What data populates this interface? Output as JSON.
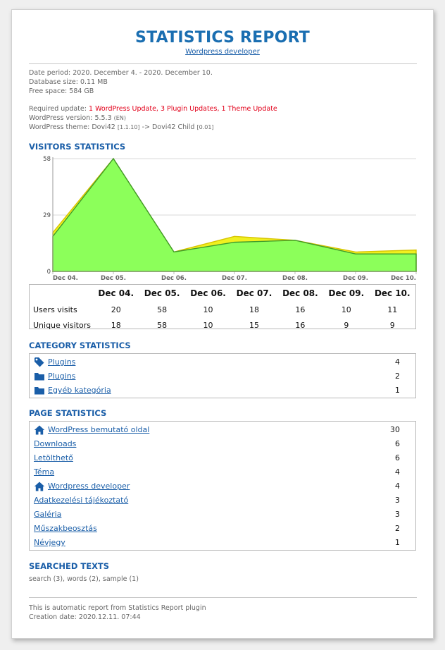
{
  "header": {
    "title": "STATISTICS REPORT",
    "subtitle_link": "Wordpress developer"
  },
  "meta": {
    "date_period": "Date period: 2020. December 4. - 2020. December 10.",
    "db_size": "Database size: 0.11 MB",
    "free_space": "Free space: 584 GB",
    "required_update_label": "Required update: ",
    "required_update_value": "1 WordPress Update, 3 Plugin Updates, 1 Theme Update",
    "wp_version_label": "WordPress version: 5.5.3",
    "wp_version_lang": "(EN)",
    "wp_theme_label": "WordPress theme: Dovi42",
    "wp_theme_ver1": "[1.1.10]",
    "wp_theme_arrow": "-> Dovi42 Child",
    "wp_theme_ver2": "[0.01]"
  },
  "sections": {
    "visitors": "VISITORS STATISTICS",
    "category": "CATEGORY STATISTICS",
    "page": "PAGE STATISTICS",
    "searched": "SEARCHED TEXTS"
  },
  "chart_data": {
    "type": "area",
    "x": [
      "Dec 04.",
      "Dec 05.",
      "Dec 06.",
      "Dec 07.",
      "Dec 08.",
      "Dec 09.",
      "Dec 10."
    ],
    "series": [
      {
        "name": "Users visits",
        "values": [
          20,
          58,
          10,
          18,
          16,
          10,
          11
        ],
        "color": "#f0f020"
      },
      {
        "name": "Unique visitors",
        "values": [
          18,
          58,
          10,
          15,
          16,
          9,
          9
        ],
        "color": "#8cff5a"
      }
    ],
    "yticks": [
      0,
      29,
      58
    ],
    "ylim": [
      0,
      58
    ],
    "grid": true
  },
  "visits_table": {
    "headers": [
      "Dec 04.",
      "Dec 05.",
      "Dec 06.",
      "Dec 07.",
      "Dec 08.",
      "Dec 09.",
      "Dec 10."
    ],
    "rows": [
      {
        "label": "Users visits",
        "values": [
          "20",
          "58",
          "10",
          "18",
          "16",
          "10",
          "11"
        ]
      },
      {
        "label": "Unique visitors",
        "values": [
          "18",
          "58",
          "10",
          "15",
          "16",
          "9",
          "9"
        ]
      }
    ]
  },
  "categories": [
    {
      "icon": "tag-icon",
      "name": "Plugins",
      "count": "4"
    },
    {
      "icon": "folder-icon",
      "name": "Plugins",
      "count": "2"
    },
    {
      "icon": "folder-icon",
      "name": "Egyéb kategória",
      "count": "1"
    }
  ],
  "pages": [
    {
      "icon": "home-icon",
      "name": "WordPress bemutató oldal",
      "count": "30"
    },
    {
      "icon": "",
      "name": "Downloads",
      "count": "6"
    },
    {
      "icon": "",
      "name": "Letölthető",
      "count": "6"
    },
    {
      "icon": "",
      "name": "Téma",
      "count": "4"
    },
    {
      "icon": "home-icon",
      "name": "Wordpress developer",
      "count": "4"
    },
    {
      "icon": "",
      "name": "Adatkezelési tájékoztató",
      "count": "3"
    },
    {
      "icon": "",
      "name": "Galéria",
      "count": "3"
    },
    {
      "icon": "",
      "name": "Műszakbeosztás",
      "count": "2"
    },
    {
      "icon": "",
      "name": "Névjegy",
      "count": "1"
    }
  ],
  "searched_texts": "search (3), words (2), sample (1)",
  "footer": {
    "line1": "This is automatic report from Statistics Report plugin",
    "line2": "Creation date: 2020.12.11. 07:44"
  },
  "colors": {
    "accent": "#1a6eb1",
    "link": "#1a5ea8",
    "alert": "#e2001a"
  }
}
